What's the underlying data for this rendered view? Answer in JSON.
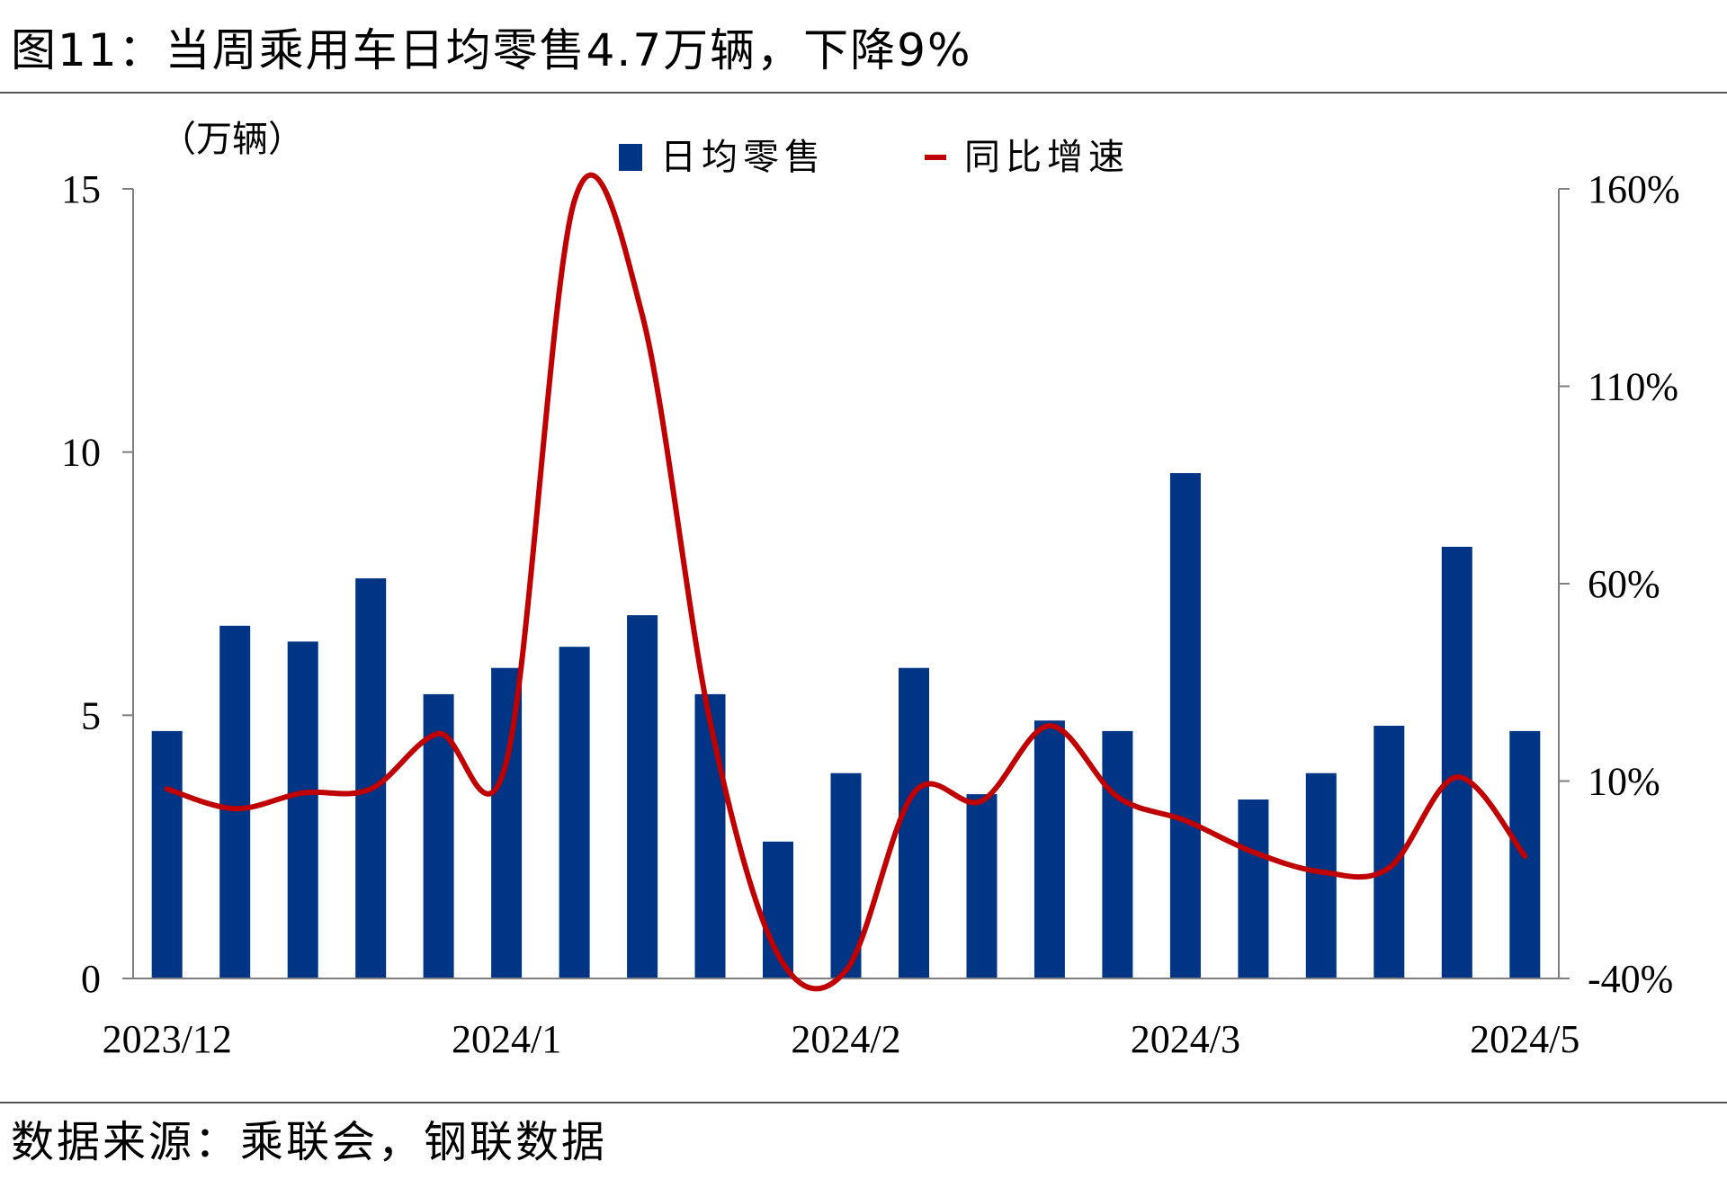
{
  "title": "图11：当周乘用车日均零售4.7万辆，下降9%",
  "source": "数据来源：乘联会，钢联数据",
  "colors": {
    "bar": "#003585",
    "line": "#C00000",
    "axis": "#7f7f7f",
    "rule": "#555555"
  },
  "chart_data": {
    "type": "bar+line",
    "unit_label": "（万辆）",
    "x_tick_labels": [
      "2023/12",
      "2024/1",
      "2024/2",
      "2024/3",
      "2024/5"
    ],
    "x_tick_positions": [
      0,
      5,
      10,
      15,
      20
    ],
    "y_left": {
      "min": 0,
      "max": 15,
      "ticks": [
        "0",
        "5",
        "10",
        "15"
      ]
    },
    "y_right": {
      "min": -40,
      "max": 160,
      "ticks": [
        "-40%",
        "10%",
        "60%",
        "110%",
        "160%"
      ]
    },
    "series": [
      {
        "name": "日均零售",
        "type": "bar",
        "axis": "left",
        "values": [
          4.7,
          6.7,
          6.4,
          7.6,
          5.4,
          5.9,
          6.3,
          6.9,
          5.4,
          2.6,
          3.9,
          5.9,
          3.5,
          4.9,
          4.7,
          9.6,
          3.4,
          3.9,
          4.8,
          8.2,
          4.7
        ]
      },
      {
        "name": "同比增速",
        "type": "line",
        "axis": "right",
        "unit": "%",
        "values": [
          8,
          3,
          7,
          8,
          22,
          15,
          157,
          128,
          25,
          -34,
          -38,
          7,
          5,
          24,
          6,
          0,
          -8,
          -13,
          -12,
          11,
          -9
        ]
      }
    ]
  }
}
